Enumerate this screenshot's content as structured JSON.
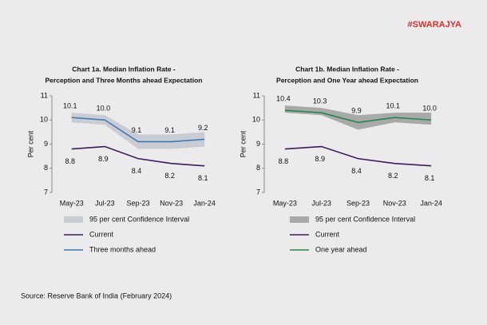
{
  "logo": "#SWARAJYA",
  "source": "Source: Reserve Bank of India (February 2024)",
  "chart_data": [
    {
      "type": "line",
      "title": [
        "Chart 1a. Median Inflation Rate -",
        "Perception and Three Months ahead Expectation"
      ],
      "y_label": "Per cent",
      "categories": [
        "May-23",
        "Jul-23",
        "Sep-23",
        "Nov-23",
        "Jan-24"
      ],
      "ylim": [
        7,
        11
      ],
      "yticks": [
        7,
        8,
        9,
        10,
        11
      ],
      "series": [
        {
          "name": "95 per cent Confidence Interval",
          "type": "band",
          "color": "#c9ccd3",
          "upper": [
            10.3,
            10.2,
            9.4,
            9.4,
            9.5
          ],
          "lower": [
            9.9,
            9.8,
            8.8,
            8.8,
            8.9
          ]
        },
        {
          "name": "Current",
          "color": "#3d1a5e",
          "label_side": "below",
          "values": [
            8.8,
            8.9,
            8.4,
            8.2,
            8.1
          ],
          "value_labels": [
            "8.8",
            "8.9",
            "8.4",
            "8.2",
            "8.1"
          ]
        },
        {
          "name": "Three months ahead",
          "color": "#3e7cb8",
          "label_side": "above",
          "values": [
            10.1,
            10.0,
            9.1,
            9.1,
            9.2
          ],
          "value_labels": [
            "10.1",
            "10.0",
            "9.1",
            "9.1",
            "9.2"
          ]
        }
      ]
    },
    {
      "type": "line",
      "title": [
        "Chart 1b. Median Inflation Rate -",
        "Perception and One Year ahead Expectation"
      ],
      "y_label": "Per cent",
      "categories": [
        "May-23",
        "Jul-23",
        "Sep-23",
        "Nov-23",
        "Jan-24"
      ],
      "ylim": [
        7,
        11
      ],
      "yticks": [
        7,
        8,
        9,
        10,
        11
      ],
      "series": [
        {
          "name": "95 per cent Confidence Interval",
          "type": "band",
          "color": "#a9a9a9",
          "upper": [
            10.6,
            10.5,
            10.2,
            10.3,
            10.3
          ],
          "lower": [
            10.3,
            10.2,
            9.6,
            9.9,
            9.8
          ]
        },
        {
          "name": "Current",
          "color": "#3d1a5e",
          "label_side": "below",
          "values": [
            8.8,
            8.9,
            8.4,
            8.2,
            8.1
          ],
          "value_labels": [
            "8.8",
            "8.9",
            "8.4",
            "8.2",
            "8.1"
          ]
        },
        {
          "name": "One year ahead",
          "color": "#1f8a4c",
          "label_side": "above",
          "values": [
            10.4,
            10.3,
            9.9,
            10.1,
            10.0
          ],
          "value_labels": [
            "10.4",
            "10.3",
            "9.9",
            "10.1",
            "10.0"
          ]
        }
      ]
    }
  ]
}
